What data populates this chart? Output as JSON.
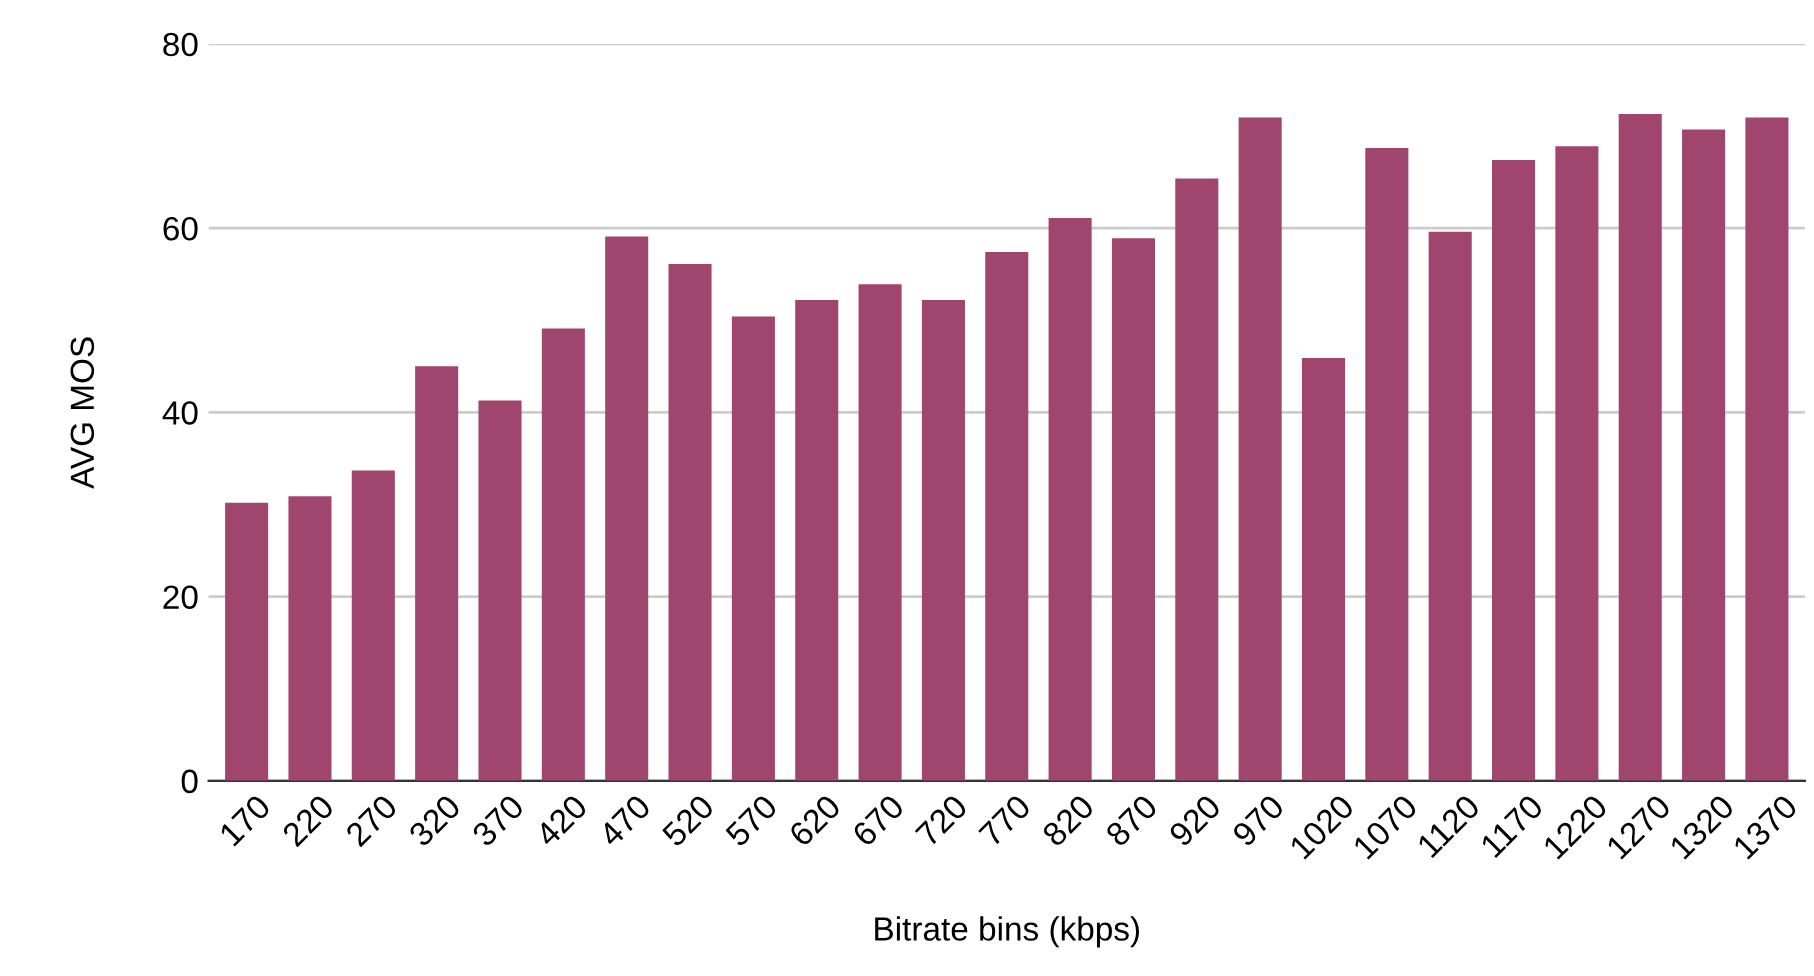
{
  "chart_data": {
    "type": "bar",
    "xlabel": "Bitrate bins (kbps)",
    "ylabel": "AVG MOS",
    "categories": [
      "170",
      "220",
      "270",
      "320",
      "370",
      "420",
      "470",
      "520",
      "570",
      "620",
      "670",
      "720",
      "770",
      "820",
      "870",
      "920",
      "970",
      "1020",
      "1070",
      "1120",
      "1170",
      "1220",
      "1270",
      "1320",
      "1370"
    ],
    "values": [
      30.2,
      30.9,
      33.7,
      45.0,
      41.3,
      49.1,
      59.1,
      56.1,
      50.4,
      52.2,
      53.9,
      52.2,
      57.4,
      61.1,
      58.9,
      65.4,
      72.0,
      45.9,
      68.7,
      59.6,
      67.4,
      68.9,
      72.4,
      70.7,
      72.0
    ],
    "color": "#a0466e",
    "ylim": [
      0,
      80
    ],
    "yticks": [
      0,
      20,
      40,
      60,
      80
    ],
    "grid": "y",
    "legend": false
  }
}
